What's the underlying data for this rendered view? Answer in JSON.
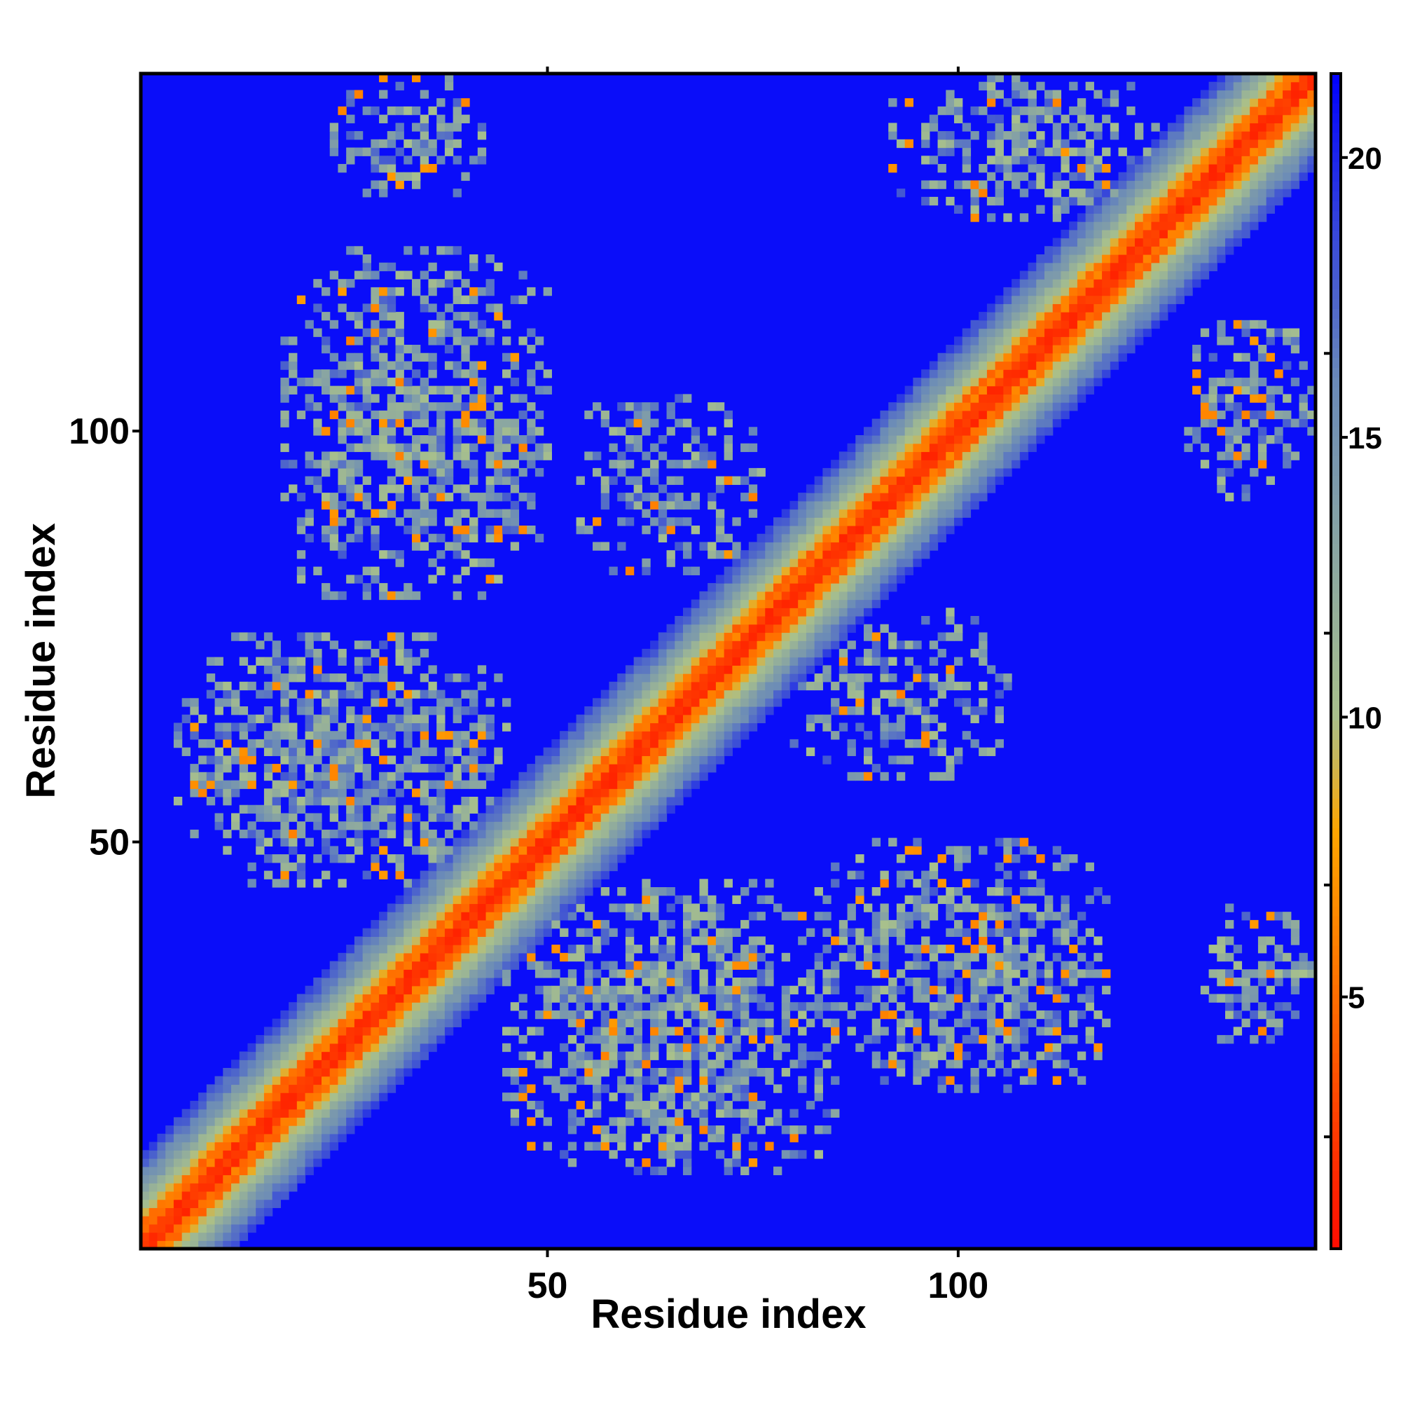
{
  "chart_data": {
    "type": "heatmap",
    "title": "",
    "xlabel": "Residue index",
    "ylabel": "Residue index",
    "n_residues": 143,
    "xlim": [
      1,
      143
    ],
    "ylim": [
      1,
      143
    ],
    "x_ticks": [
      50,
      100
    ],
    "y_ticks": [
      50,
      100
    ],
    "colorbar": {
      "ticks": [
        5,
        10,
        15,
        20
      ],
      "range": [
        0.5,
        21.5
      ],
      "colors": [
        "#ff0000",
        "#ff5a00",
        "#ffa500",
        "#a8c08c",
        "#6a8ab8",
        "#0000ff"
      ],
      "stops": [
        0,
        4,
        8,
        10,
        16,
        21.5
      ]
    },
    "background_value": 21,
    "diagonal_band": {
      "core_width": 3,
      "half_width": 11
    },
    "contact_regions": [
      {
        "name": "lower-left-strand",
        "x_range": [
          5,
          45
        ],
        "y_range": [
          45,
          75
        ],
        "density": 0.75
      },
      {
        "name": "upper-left-strand",
        "x_range": [
          18,
          50
        ],
        "y_range": [
          80,
          122
        ],
        "density": 0.7
      },
      {
        "name": "lower-strand",
        "x_range": [
          45,
          85
        ],
        "y_range": [
          10,
          45
        ],
        "density": 0.75
      },
      {
        "name": "right-lower-strand",
        "x_range": [
          82,
          118
        ],
        "y_range": [
          20,
          50
        ],
        "density": 0.7
      },
      {
        "name": "middle-upper-patch",
        "x_range": [
          54,
          76
        ],
        "y_range": [
          83,
          104
        ],
        "density": 0.5
      },
      {
        "name": "middle-right-patch",
        "x_range": [
          80,
          106
        ],
        "y_range": [
          58,
          78
        ],
        "density": 0.5
      },
      {
        "name": "top-left-patch",
        "x_range": [
          24,
          42
        ],
        "y_range": [
          129,
          143
        ],
        "density": 0.55
      },
      {
        "name": "top-right-patch",
        "x_range": [
          92,
          124
        ],
        "y_range": [
          125,
          143
        ],
        "density": 0.6
      },
      {
        "name": "right-upper-patch",
        "x_range": [
          128,
          143
        ],
        "y_range": [
          92,
          114
        ],
        "density": 0.55
      },
      {
        "name": "right-lower-patch",
        "x_range": [
          130,
          143
        ],
        "y_range": [
          25,
          42
        ],
        "density": 0.55
      }
    ]
  }
}
